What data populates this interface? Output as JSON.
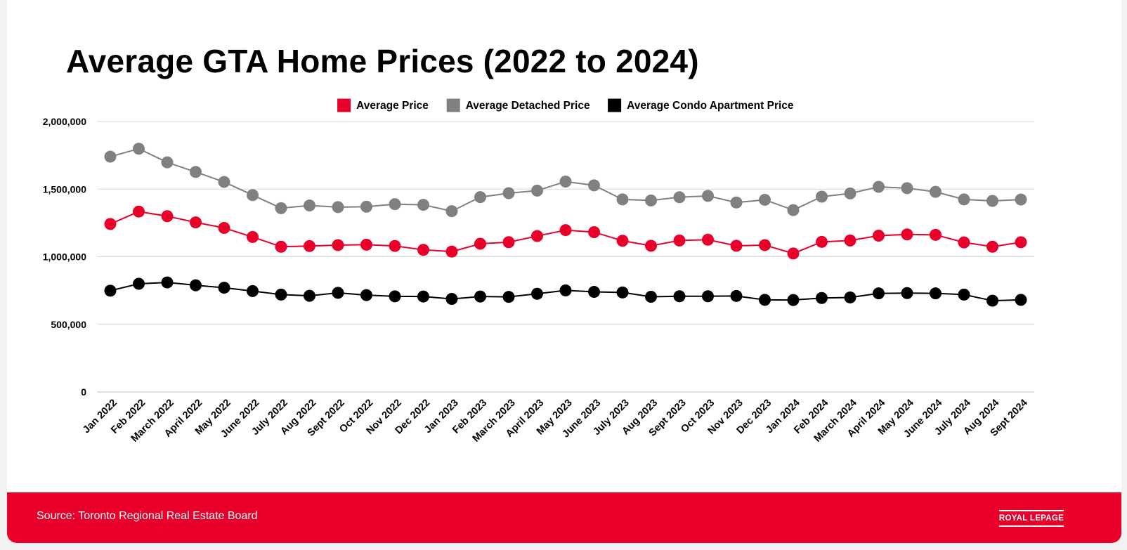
{
  "title": "Average GTA Home Prices (2022 to 2024)",
  "source": "Source: Toronto Regional Real Estate Board",
  "logo_text": "ROYAL LEPAGE",
  "colors": {
    "average": "#e8002a",
    "detached": "#808080",
    "condo": "#000000",
    "footer": "#e8002a",
    "grid": "#d9d9d9"
  },
  "chart_data": {
    "type": "line",
    "title": "Average GTA Home Prices (2022 to 2024)",
    "xlabel": "",
    "ylabel": "",
    "ylim": [
      0,
      2000000
    ],
    "yticks": [
      0,
      500000,
      1000000,
      1500000,
      2000000
    ],
    "ytick_labels": [
      "0",
      "500,000",
      "1,000,000",
      "1,500,000",
      "2,000,000"
    ],
    "grid": true,
    "legend_position": "top-center",
    "categories": [
      "Jan 2022",
      "Feb 2022",
      "March 2022",
      "April 2022",
      "May 2022",
      "June 2022",
      "July 2022",
      "Aug 2022",
      "Sept 2022",
      "Oct 2022",
      "Nov 2022",
      "Dec 2022",
      "Jan 2023",
      "Feb 2023",
      "March 2023",
      "April 2023",
      "May 2023",
      "June 2023",
      "July 2023",
      "Aug 2023",
      "Sept 2023",
      "Oct 2023",
      "Nov 2023",
      "Dec 2023",
      "Jan 2024",
      "Feb 2024",
      "March 2024",
      "April 2024",
      "May 2024",
      "June 2024",
      "July 2024",
      "Aug 2024",
      "Sept 2024"
    ],
    "series": [
      {
        "name": "Average Price",
        "color": "#e8002a",
        "values": [
          1242000,
          1334000,
          1300000,
          1254000,
          1213000,
          1146000,
          1074000,
          1079000,
          1086000,
          1089000,
          1080000,
          1051000,
          1038000,
          1096000,
          1108000,
          1153000,
          1197000,
          1182000,
          1118000,
          1081000,
          1120000,
          1126000,
          1081000,
          1086000,
          1024000,
          1110000,
          1120000,
          1156000,
          1165000,
          1162000,
          1106000,
          1074000,
          1107000
        ]
      },
      {
        "name": "Average Detached Price",
        "color": "#808080",
        "values": [
          1740000,
          1799000,
          1698000,
          1627000,
          1553000,
          1456000,
          1359000,
          1379000,
          1367000,
          1370000,
          1389000,
          1384000,
          1337000,
          1441000,
          1470000,
          1489000,
          1556000,
          1528000,
          1424000,
          1416000,
          1440000,
          1450000,
          1401000,
          1421000,
          1345000,
          1444000,
          1468000,
          1517000,
          1507000,
          1480000,
          1424000,
          1413000,
          1423000
        ]
      },
      {
        "name": "Average Condo Apartment Price",
        "color": "#000000",
        "values": [
          749000,
          800000,
          810000,
          789000,
          771000,
          746000,
          720000,
          711000,
          733000,
          716000,
          707000,
          706000,
          688000,
          706000,
          703000,
          726000,
          751000,
          740000,
          736000,
          704000,
          708000,
          708000,
          710000,
          681000,
          680000,
          695000,
          699000,
          729000,
          731000,
          729000,
          720000,
          675000,
          681000
        ]
      }
    ]
  }
}
